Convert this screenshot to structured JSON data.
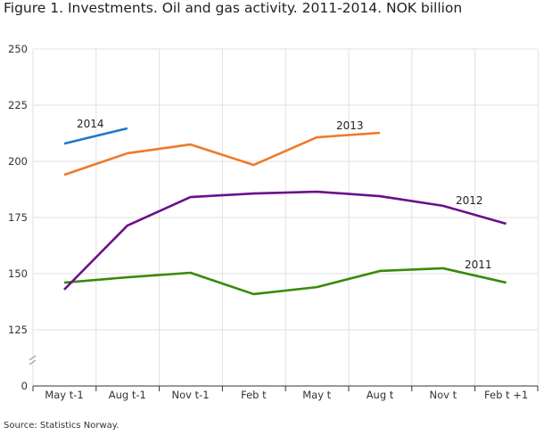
{
  "title": "Figure 1. Investments. Oil and gas activity. 2011-2014. NOK billion",
  "source": "Source: Statistics Norway.",
  "chart_data": {
    "type": "line",
    "title": "Figure 1. Investments. Oil and gas activity. 2011-2014. NOK billion",
    "categories": [
      "May t-1",
      "Aug t-1",
      "Nov t-1",
      "Feb t",
      "May t",
      "Aug t",
      "Nov t",
      "Feb t +1"
    ],
    "y_ticks": [
      0,
      125,
      150,
      175,
      200,
      225,
      250
    ],
    "ylim": [
      0,
      250
    ],
    "axis_break": "between 0 and 125",
    "grid": true,
    "series": [
      {
        "name": "2011",
        "color": "#3a8a0a",
        "values": [
          146.0,
          148.4,
          150.4,
          140.9,
          144.0,
          151.2,
          152.4,
          146.0
        ]
      },
      {
        "name": "2012",
        "color": "#6b0f8a",
        "values": [
          142.9,
          171.4,
          184.1,
          185.7,
          186.5,
          184.5,
          180.2,
          172.2
        ]
      },
      {
        "name": "2013",
        "color": "#ee7a2a",
        "values": [
          194.0,
          203.6,
          207.5,
          198.4,
          210.7,
          212.7,
          null,
          null
        ]
      },
      {
        "name": "2014",
        "color": "#1f78c8",
        "values": [
          207.9,
          214.7,
          null,
          null,
          null,
          null,
          null,
          null
        ]
      }
    ]
  }
}
